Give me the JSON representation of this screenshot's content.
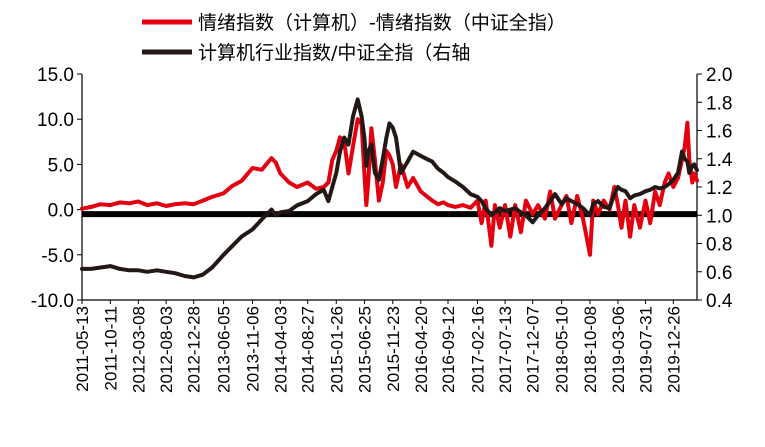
{
  "chart_data": {
    "type": "line",
    "title": "",
    "xlabel": "",
    "ylabel": "",
    "legend_position": "top",
    "y_left": {
      "ylim": [
        -10,
        15
      ],
      "ticks": [
        "-10.0",
        "-5.0",
        "0.0",
        "5.0",
        "10.0",
        "15.0"
      ]
    },
    "y_right": {
      "ylim": [
        0.4,
        2.0
      ],
      "ticks": [
        "0.4",
        "0.6",
        "0.8",
        "1.0",
        "1.2",
        "1.4",
        "1.6",
        "1.8",
        "2.0"
      ]
    },
    "x_start": "2011-05-13",
    "x_end": "2020-04-30",
    "x_tick_labels": [
      "2011-05-13",
      "2011-10-11",
      "2012-03-08",
      "2012-08-03",
      "2012-12-28",
      "2013-06-05",
      "2013-11-06",
      "2014-04-03",
      "2014-08-27",
      "2015-01-26",
      "2015-06-25",
      "2015-11-23",
      "2016-04-20",
      "2016-09-12",
      "2017-02-16",
      "2017-07-13",
      "2017-12-07",
      "2018-05-10",
      "2018-10-08",
      "2019-03-06",
      "2019-07-31",
      "2019-12-26"
    ],
    "baseline_y": -0.5,
    "series": [
      {
        "name": "情绪指数（计算机）-情绪指数（中证全指）",
        "axis": "left",
        "color": "#e3000f",
        "points": [
          [
            "2011-05-13",
            0.1
          ],
          [
            "2011-07-01",
            0.3
          ],
          [
            "2011-08-20",
            0.6
          ],
          [
            "2011-10-11",
            0.5
          ],
          [
            "2011-12-01",
            0.8
          ],
          [
            "2012-01-20",
            0.7
          ],
          [
            "2012-03-08",
            0.9
          ],
          [
            "2012-04-25",
            0.5
          ],
          [
            "2012-06-15",
            0.7
          ],
          [
            "2012-08-03",
            0.4
          ],
          [
            "2012-09-20",
            0.6
          ],
          [
            "2012-11-10",
            0.7
          ],
          [
            "2012-12-28",
            0.6
          ],
          [
            "2013-02-15",
            1.0
          ],
          [
            "2013-04-05",
            1.4
          ],
          [
            "2013-06-05",
            1.8
          ],
          [
            "2013-07-20",
            2.6
          ],
          [
            "2013-09-10",
            3.2
          ],
          [
            "2013-11-06",
            4.6
          ],
          [
            "2013-12-25",
            4.4
          ],
          [
            "2014-02-15",
            5.7
          ],
          [
            "2014-03-10",
            5.2
          ],
          [
            "2014-04-03",
            4.0
          ],
          [
            "2014-05-20",
            3.0
          ],
          [
            "2014-07-01",
            2.5
          ],
          [
            "2014-08-27",
            3.0
          ],
          [
            "2014-10-10",
            2.3
          ],
          [
            "2014-11-20",
            2.5
          ],
          [
            "2014-12-15",
            3.0
          ],
          [
            "2015-01-05",
            5.5
          ],
          [
            "2015-01-26",
            6.5
          ],
          [
            "2015-02-15",
            8.0
          ],
          [
            "2015-03-10",
            7.5
          ],
          [
            "2015-04-01",
            4.0
          ],
          [
            "2015-04-25",
            7.0
          ],
          [
            "2015-05-20",
            10.0
          ],
          [
            "2015-06-10",
            9.5
          ],
          [
            "2015-06-25",
            4.0
          ],
          [
            "2015-07-05",
            0.5
          ],
          [
            "2015-07-15",
            3.0
          ],
          [
            "2015-08-01",
            9.0
          ],
          [
            "2015-08-20",
            5.5
          ],
          [
            "2015-09-10",
            1.0
          ],
          [
            "2015-10-01",
            3.0
          ],
          [
            "2015-10-20",
            6.5
          ],
          [
            "2015-11-05",
            6.0
          ],
          [
            "2015-11-23",
            5.0
          ],
          [
            "2015-12-10",
            2.5
          ],
          [
            "2016-01-05",
            5.0
          ],
          [
            "2016-02-10",
            2.5
          ],
          [
            "2016-03-10",
            3.5
          ],
          [
            "2016-04-20",
            2.0
          ],
          [
            "2016-05-20",
            1.5
          ],
          [
            "2016-06-20",
            1.0
          ],
          [
            "2016-07-20",
            0.6
          ],
          [
            "2016-08-20",
            0.8
          ],
          [
            "2016-09-12",
            0.5
          ],
          [
            "2016-10-20",
            0.3
          ],
          [
            "2016-12-01",
            0.5
          ],
          [
            "2017-01-10",
            0.2
          ],
          [
            "2017-02-16",
            1.0
          ],
          [
            "2017-03-10",
            -1.5
          ],
          [
            "2017-04-01",
            1.0
          ],
          [
            "2017-05-01",
            -4.0
          ],
          [
            "2017-05-20",
            0.5
          ],
          [
            "2017-06-15",
            -2.0
          ],
          [
            "2017-07-13",
            0.5
          ],
          [
            "2017-08-10",
            -3.0
          ],
          [
            "2017-09-05",
            0.5
          ],
          [
            "2017-10-05",
            -2.5
          ],
          [
            "2017-11-01",
            1.0
          ],
          [
            "2017-12-07",
            -0.5
          ],
          [
            "2018-01-05",
            0.5
          ],
          [
            "2018-02-10",
            -1.0
          ],
          [
            "2018-03-10",
            2.0
          ],
          [
            "2018-04-05",
            -1.0
          ],
          [
            "2018-05-10",
            0.5
          ],
          [
            "2018-06-05",
            1.5
          ],
          [
            "2018-07-01",
            -1.5
          ],
          [
            "2018-08-01",
            1.5
          ],
          [
            "2018-09-01",
            -1.0
          ],
          [
            "2018-10-08",
            -5.0
          ],
          [
            "2018-10-25",
            1.0
          ],
          [
            "2018-11-20",
            -0.5
          ],
          [
            "2018-12-20",
            1.0
          ],
          [
            "2019-01-20",
            0.0
          ],
          [
            "2019-02-15",
            2.5
          ],
          [
            "2019-03-06",
            0.5
          ],
          [
            "2019-03-25",
            -2.0
          ],
          [
            "2019-04-15",
            1.0
          ],
          [
            "2019-05-10",
            -3.0
          ],
          [
            "2019-06-01",
            0.5
          ],
          [
            "2019-07-01",
            -2.0
          ],
          [
            "2019-07-31",
            1.0
          ],
          [
            "2019-08-25",
            -1.5
          ],
          [
            "2019-09-20",
            2.0
          ],
          [
            "2019-10-15",
            0.5
          ],
          [
            "2019-11-10",
            3.0
          ],
          [
            "2019-12-01",
            4.0
          ],
          [
            "2019-12-26",
            2.5
          ],
          [
            "2020-01-20",
            3.5
          ],
          [
            "2020-02-10",
            5.5
          ],
          [
            "2020-02-25",
            7.0
          ],
          [
            "2020-03-10",
            9.6
          ],
          [
            "2020-03-20",
            5.5
          ],
          [
            "2020-04-05",
            3.0
          ],
          [
            "2020-04-15",
            4.0
          ],
          [
            "2020-04-30",
            3.2
          ]
        ]
      },
      {
        "name": "计算机行业指数/中证全指（右轴",
        "axis": "right",
        "color": "#231815",
        "points": [
          [
            "2011-05-13",
            0.62
          ],
          [
            "2011-07-01",
            0.62
          ],
          [
            "2011-08-20",
            0.63
          ],
          [
            "2011-10-11",
            0.64
          ],
          [
            "2011-12-01",
            0.62
          ],
          [
            "2012-01-20",
            0.61
          ],
          [
            "2012-03-08",
            0.61
          ],
          [
            "2012-04-25",
            0.6
          ],
          [
            "2012-06-15",
            0.61
          ],
          [
            "2012-08-03",
            0.6
          ],
          [
            "2012-09-20",
            0.59
          ],
          [
            "2012-11-10",
            0.57
          ],
          [
            "2012-12-28",
            0.56
          ],
          [
            "2013-02-15",
            0.58
          ],
          [
            "2013-04-05",
            0.63
          ],
          [
            "2013-06-05",
            0.72
          ],
          [
            "2013-07-20",
            0.78
          ],
          [
            "2013-09-10",
            0.85
          ],
          [
            "2013-11-06",
            0.9
          ],
          [
            "2013-12-25",
            0.97
          ],
          [
            "2014-02-15",
            1.04
          ],
          [
            "2014-03-10",
            1.0
          ],
          [
            "2014-04-03",
            1.02
          ],
          [
            "2014-05-20",
            1.03
          ],
          [
            "2014-07-01",
            1.07
          ],
          [
            "2014-08-27",
            1.1
          ],
          [
            "2014-10-10",
            1.15
          ],
          [
            "2014-11-20",
            1.18
          ],
          [
            "2014-12-15",
            1.1
          ],
          [
            "2015-01-05",
            1.2
          ],
          [
            "2015-01-26",
            1.3
          ],
          [
            "2015-02-15",
            1.45
          ],
          [
            "2015-03-10",
            1.55
          ],
          [
            "2015-04-01",
            1.5
          ],
          [
            "2015-04-25",
            1.7
          ],
          [
            "2015-05-20",
            1.82
          ],
          [
            "2015-06-10",
            1.7
          ],
          [
            "2015-06-25",
            1.55
          ],
          [
            "2015-07-05",
            1.35
          ],
          [
            "2015-07-15",
            1.45
          ],
          [
            "2015-08-01",
            1.5
          ],
          [
            "2015-08-20",
            1.3
          ],
          [
            "2015-09-10",
            1.25
          ],
          [
            "2015-10-01",
            1.4
          ],
          [
            "2015-10-20",
            1.55
          ],
          [
            "2015-11-05",
            1.65
          ],
          [
            "2015-11-23",
            1.62
          ],
          [
            "2015-12-10",
            1.55
          ],
          [
            "2016-01-05",
            1.3
          ],
          [
            "2016-02-10",
            1.38
          ],
          [
            "2016-03-10",
            1.45
          ],
          [
            "2016-04-20",
            1.42
          ],
          [
            "2016-05-20",
            1.4
          ],
          [
            "2016-06-20",
            1.38
          ],
          [
            "2016-07-20",
            1.33
          ],
          [
            "2016-08-20",
            1.3
          ],
          [
            "2016-09-12",
            1.27
          ],
          [
            "2016-10-20",
            1.24
          ],
          [
            "2016-12-01",
            1.2
          ],
          [
            "2017-01-10",
            1.15
          ],
          [
            "2017-02-16",
            1.13
          ],
          [
            "2017-03-10",
            1.1
          ],
          [
            "2017-04-01",
            1.05
          ],
          [
            "2017-05-01",
            1.0
          ],
          [
            "2017-05-20",
            1.02
          ],
          [
            "2017-06-15",
            1.05
          ],
          [
            "2017-07-13",
            1.03
          ],
          [
            "2017-08-10",
            1.04
          ],
          [
            "2017-09-05",
            1.05
          ],
          [
            "2017-10-05",
            1.02
          ],
          [
            "2017-11-01",
            1.0
          ],
          [
            "2017-12-07",
            0.95
          ],
          [
            "2018-01-05",
            1.0
          ],
          [
            "2018-02-10",
            1.05
          ],
          [
            "2018-03-10",
            1.1
          ],
          [
            "2018-04-05",
            1.15
          ],
          [
            "2018-05-10",
            1.08
          ],
          [
            "2018-06-05",
            1.12
          ],
          [
            "2018-07-01",
            1.1
          ],
          [
            "2018-08-01",
            1.08
          ],
          [
            "2018-09-01",
            1.05
          ],
          [
            "2018-10-08",
            1.0
          ],
          [
            "2018-10-25",
            1.08
          ],
          [
            "2018-11-20",
            1.1
          ],
          [
            "2018-12-20",
            1.06
          ],
          [
            "2019-01-20",
            1.05
          ],
          [
            "2019-02-15",
            1.15
          ],
          [
            "2019-03-06",
            1.2
          ],
          [
            "2019-03-25",
            1.18
          ],
          [
            "2019-04-15",
            1.17
          ],
          [
            "2019-05-10",
            1.12
          ],
          [
            "2019-06-01",
            1.14
          ],
          [
            "2019-07-01",
            1.15
          ],
          [
            "2019-07-31",
            1.17
          ],
          [
            "2019-08-25",
            1.18
          ],
          [
            "2019-09-20",
            1.2
          ],
          [
            "2019-10-15",
            1.19
          ],
          [
            "2019-11-10",
            1.2
          ],
          [
            "2019-12-01",
            1.22
          ],
          [
            "2019-12-26",
            1.25
          ],
          [
            "2020-01-20",
            1.3
          ],
          [
            "2020-02-10",
            1.45
          ],
          [
            "2020-02-25",
            1.4
          ],
          [
            "2020-03-10",
            1.38
          ],
          [
            "2020-03-20",
            1.3
          ],
          [
            "2020-04-05",
            1.35
          ],
          [
            "2020-04-15",
            1.36
          ],
          [
            "2020-04-30",
            1.32
          ]
        ]
      }
    ]
  }
}
